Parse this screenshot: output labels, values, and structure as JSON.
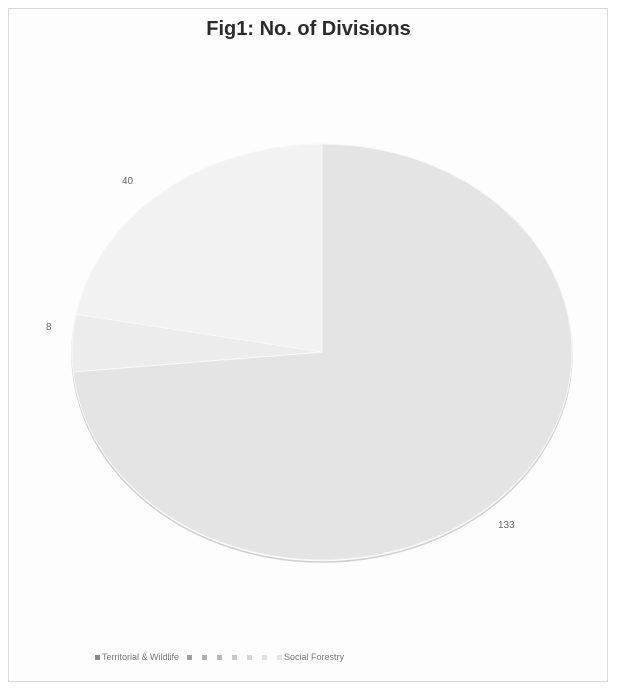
{
  "chart_data": {
    "type": "pie",
    "title": "Fig1: No. of Divisions",
    "slices": [
      {
        "label": "Territorial & Wildlife",
        "value": 133,
        "color": "#e4e4e4"
      },
      {
        "label": "",
        "value": 8,
        "color": "#ececec"
      },
      {
        "label": "Social Forestry",
        "value": 40,
        "color": "#f2f2f2"
      }
    ],
    "data_labels": [
      "133",
      "8",
      "40"
    ],
    "legend": {
      "placement": "bottom",
      "entries": [
        "Territorial & Wildlife",
        "",
        "",
        "",
        "",
        "",
        "",
        "Social Forestry"
      ],
      "marker_colors": [
        "#888888",
        "#a0a0a0",
        "#b0b0b0",
        "#b8b8b8",
        "#c8c8c8",
        "#d8d8d8",
        "#e0e0e0",
        "#e4e4e4"
      ]
    }
  }
}
